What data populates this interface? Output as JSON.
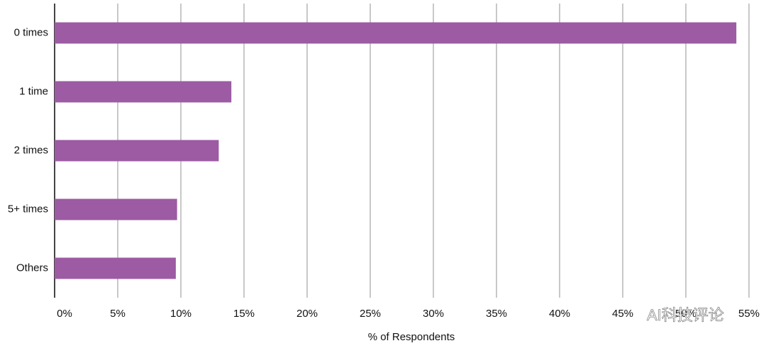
{
  "chart_data": {
    "type": "bar",
    "orientation": "horizontal",
    "x_label": "% of Respondents",
    "categories": [
      "0 times",
      "1 time",
      "2 times",
      "5+ times",
      "Others"
    ],
    "values": [
      54,
      14,
      13,
      9.7,
      9.6
    ],
    "color": "#9c5ba3",
    "xlim": [
      0,
      55
    ],
    "xticks": [
      {
        "value": 0,
        "label": "0%"
      },
      {
        "value": 5,
        "label": "5%"
      },
      {
        "value": 10,
        "label": "10%"
      },
      {
        "value": 15,
        "label": "15%"
      },
      {
        "value": 20,
        "label": "20%"
      },
      {
        "value": 25,
        "label": "25%"
      },
      {
        "value": 30,
        "label": "30%"
      },
      {
        "value": 35,
        "label": "35%"
      },
      {
        "value": 40,
        "label": "40%"
      },
      {
        "value": 45,
        "label": "45%"
      },
      {
        "value": 50,
        "label": "50%"
      },
      {
        "value": 55,
        "label": "55%"
      }
    ],
    "grid": true,
    "watermark": "AI科技评论"
  }
}
